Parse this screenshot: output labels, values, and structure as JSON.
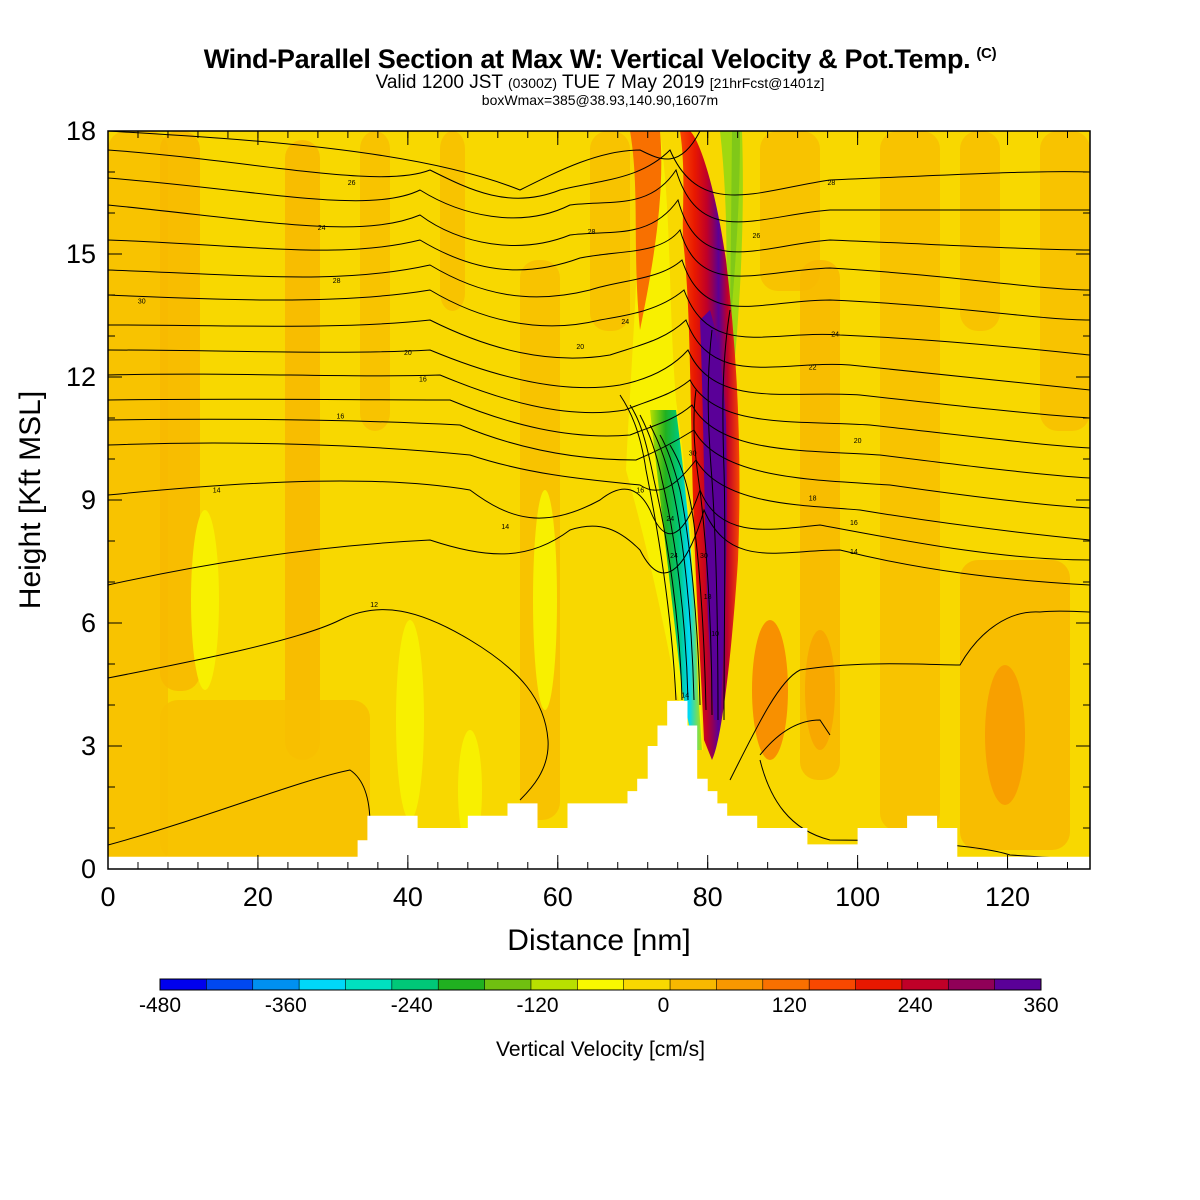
{
  "titles": {
    "main": "Wind-Parallel Section at Max W: Vertical Velocity & Pot.Temp.",
    "copyright": "(C)",
    "valid_prefix": "Valid 1200 JST",
    "valid_utc": "(0300Z)",
    "valid_date": "TUE 7 May 2019",
    "forecast": "[21hrFcst@1401z]",
    "boxline": "boxWmax=385@38.93,140.90,1607m"
  },
  "chart_data": {
    "type": "heatmap",
    "xlabel": "Distance [nm]",
    "ylabel": "Height [Kft MSL]",
    "xlim": [
      0,
      131
    ],
    "ylim": [
      0,
      18
    ],
    "x_ticks": [
      0,
      20,
      40,
      60,
      80,
      100,
      120
    ],
    "y_ticks": [
      0,
      3,
      6,
      9,
      12,
      15,
      18
    ],
    "colorbar": {
      "title": "Vertical Velocity [cm/s]",
      "tick_labels": [
        -480,
        -360,
        -240,
        -120,
        0,
        120,
        240,
        360
      ],
      "range": [
        -480,
        360
      ],
      "colors": [
        "#0000ee",
        "#0048f0",
        "#0090f0",
        "#00d8f8",
        "#00e0c0",
        "#00c878",
        "#20b020",
        "#70c010",
        "#b8e000",
        "#f8f800",
        "#f8d800",
        "#f8b800",
        "#f89800",
        "#f87000",
        "#f84800",
        "#e81800",
        "#c00028",
        "#900058",
        "#5a0098"
      ]
    },
    "features": {
      "max_updraft_x": 81,
      "max_downdraft_x": 77,
      "terrain_peak": {
        "x": 76,
        "height_kft": 4.1
      }
    },
    "terrain": [
      [
        0,
        0.3
      ],
      [
        33.3,
        0.3
      ],
      [
        33.3,
        0.7
      ],
      [
        34.6,
        0.7
      ],
      [
        34.6,
        1.3
      ],
      [
        41.3,
        1.3
      ],
      [
        41.3,
        1.0
      ],
      [
        48.0,
        1.0
      ],
      [
        48.0,
        1.3
      ],
      [
        53.3,
        1.3
      ],
      [
        53.3,
        1.6
      ],
      [
        57.3,
        1.6
      ],
      [
        57.3,
        1.0
      ],
      [
        61.3,
        1.0
      ],
      [
        61.3,
        1.6
      ],
      [
        69.3,
        1.6
      ],
      [
        69.3,
        1.9
      ],
      [
        70.6,
        1.9
      ],
      [
        70.6,
        2.2
      ],
      [
        72.0,
        2.2
      ],
      [
        72.0,
        3.0
      ],
      [
        73.3,
        3.0
      ],
      [
        73.3,
        3.5
      ],
      [
        74.6,
        3.5
      ],
      [
        74.6,
        4.1
      ],
      [
        77.3,
        4.1
      ],
      [
        77.3,
        3.5
      ],
      [
        78.6,
        3.5
      ],
      [
        78.6,
        2.2
      ],
      [
        80.0,
        2.2
      ],
      [
        80.0,
        1.9
      ],
      [
        81.3,
        1.9
      ],
      [
        81.3,
        1.6
      ],
      [
        82.6,
        1.6
      ],
      [
        82.6,
        1.3
      ],
      [
        86.6,
        1.3
      ],
      [
        86.6,
        1.0
      ],
      [
        93.3,
        1.0
      ],
      [
        93.3,
        0.6
      ],
      [
        100.0,
        0.6
      ],
      [
        100.0,
        1.0
      ],
      [
        106.6,
        1.0
      ],
      [
        106.6,
        1.3
      ],
      [
        110.6,
        1.3
      ],
      [
        110.6,
        1.0
      ],
      [
        113.3,
        1.0
      ],
      [
        113.3,
        0.3
      ],
      [
        131,
        0.3
      ]
    ],
    "contour_labels": [
      {
        "x": 14.5,
        "y": 9.25,
        "text": "14"
      },
      {
        "x": 53.0,
        "y": 8.35,
        "text": "14"
      },
      {
        "x": 31.0,
        "y": 11.05,
        "text": "16"
      },
      {
        "x": 42.0,
        "y": 11.95,
        "text": "16"
      },
      {
        "x": 35.5,
        "y": 6.45,
        "text": "12"
      },
      {
        "x": 40.0,
        "y": 12.6,
        "text": "20"
      },
      {
        "x": 63.0,
        "y": 12.75,
        "text": "20"
      },
      {
        "x": 30.5,
        "y": 14.35,
        "text": "28"
      },
      {
        "x": 4.5,
        "y": 13.85,
        "text": "30"
      },
      {
        "x": 28.5,
        "y": 15.65,
        "text": "24"
      },
      {
        "x": 32.5,
        "y": 16.75,
        "text": "26"
      },
      {
        "x": 64.5,
        "y": 15.55,
        "text": "28"
      },
      {
        "x": 69.0,
        "y": 13.35,
        "text": "24"
      },
      {
        "x": 71.0,
        "y": 9.25,
        "text": "16"
      },
      {
        "x": 75.0,
        "y": 8.55,
        "text": "24"
      },
      {
        "x": 75.5,
        "y": 7.65,
        "text": "24"
      },
      {
        "x": 78.0,
        "y": 10.15,
        "text": "30"
      },
      {
        "x": 79.5,
        "y": 7.65,
        "text": "30"
      },
      {
        "x": 80.0,
        "y": 6.65,
        "text": "18"
      },
      {
        "x": 81.0,
        "y": 5.75,
        "text": "10"
      },
      {
        "x": 77.0,
        "y": 4.25,
        "text": "14"
      },
      {
        "x": 86.5,
        "y": 15.45,
        "text": "26"
      },
      {
        "x": 96.5,
        "y": 16.75,
        "text": "28"
      },
      {
        "x": 97.0,
        "y": 13.05,
        "text": "24"
      },
      {
        "x": 94.0,
        "y": 12.25,
        "text": "22"
      },
      {
        "x": 100.0,
        "y": 10.45,
        "text": "20"
      },
      {
        "x": 94.0,
        "y": 9.05,
        "text": "18"
      },
      {
        "x": 99.5,
        "y": 8.45,
        "text": "16"
      },
      {
        "x": 99.5,
        "y": 7.75,
        "text": "14"
      }
    ]
  }
}
